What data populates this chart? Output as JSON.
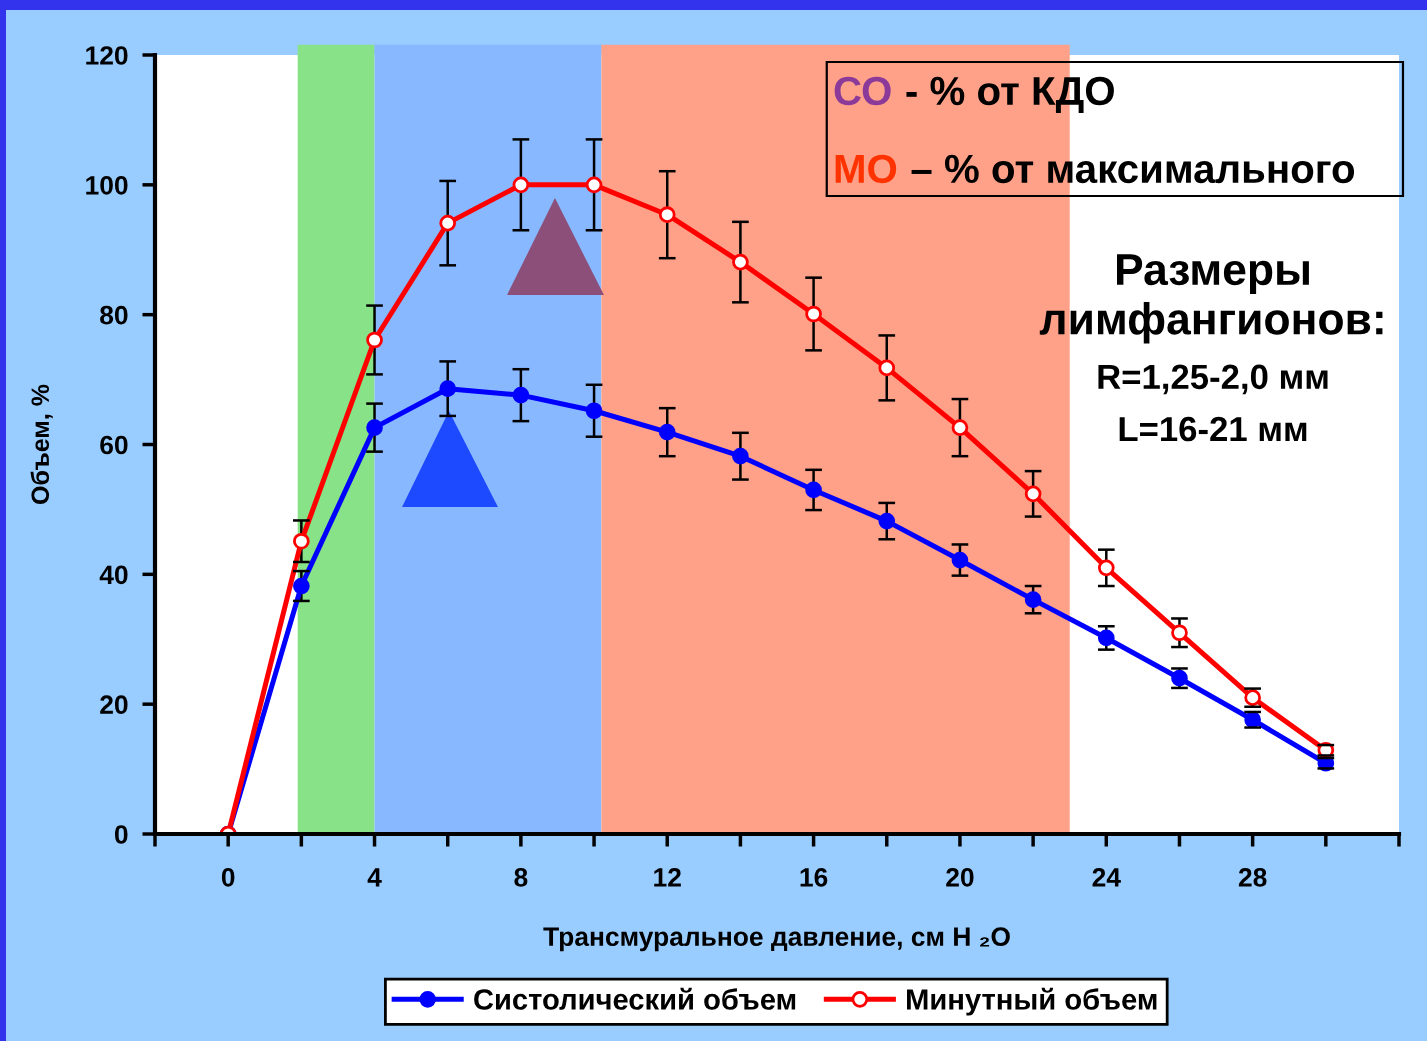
{
  "chart_data": {
    "type": "line",
    "x": [
      0,
      2,
      4,
      6,
      8,
      10,
      12,
      14,
      16,
      18,
      20,
      22,
      24,
      26,
      28,
      30
    ],
    "xlabel": "Трансмуральное давление, см H ₂O",
    "ylabel": "Объем, %",
    "xlim": [
      -2,
      32
    ],
    "xticks": [
      {
        "value": -2,
        "label": null
      },
      0,
      {
        "value": 2,
        "label": null
      },
      4,
      {
        "value": 6,
        "label": null
      },
      8,
      {
        "value": 10,
        "label": null
      },
      12,
      {
        "value": 14,
        "label": null
      },
      16,
      {
        "value": 18,
        "label": null
      },
      20,
      {
        "value": 22,
        "label": null
      },
      24,
      {
        "value": 26,
        "label": null
      },
      28,
      {
        "value": 30,
        "label": null
      },
      {
        "value": 32,
        "label": null
      }
    ],
    "ylim": [
      0,
      120
    ],
    "yticks": [
      0,
      20,
      40,
      60,
      80,
      100,
      120
    ],
    "series": [
      {
        "name": "Систолический объем",
        "color": "#0000ff",
        "values": [
          0,
          38.2,
          62.6,
          68.6,
          67.6,
          65.2,
          61.9,
          58.2,
          53.0,
          48.2,
          42.2,
          36.1,
          30.2,
          24.0,
          17.6,
          10.9
        ],
        "errors": [
          null,
          2.3,
          3.7,
          4.2,
          4.0,
          4.0,
          3.7,
          3.6,
          3.1,
          2.8,
          2.4,
          2.1,
          1.8,
          1.5,
          1.2,
          0.8
        ]
      },
      {
        "name": "Минутный объем",
        "color": "#ff0000",
        "values": [
          0,
          45.1,
          76.1,
          94.1,
          100.0,
          100.0,
          95.4,
          88.1,
          80.1,
          71.8,
          62.6,
          52.4,
          41.0,
          31.0,
          21.0,
          12.9
        ],
        "errors": [
          null,
          3.2,
          5.3,
          6.5,
          7.0,
          7.0,
          6.7,
          6.2,
          5.6,
          5.0,
          4.4,
          3.5,
          2.8,
          2.2,
          1.4,
          0.8
        ]
      }
    ],
    "bands": [
      {
        "axis": "x",
        "from": 1.9,
        "to": 4,
        "color": "#88e288"
      },
      {
        "axis": "x",
        "from": 4,
        "to": 10.2,
        "color": "#88b8ff"
      },
      {
        "axis": "x",
        "from": 10.2,
        "to": 23,
        "color": "#ffa088"
      }
    ],
    "annotations": [
      "СО",
      "- % от КДО",
      "МО",
      "– % от максимального",
      "Размеры\nлимфангионов:",
      "R=1,25-2,0 мм",
      "L=16-21 мм"
    ],
    "legend": "bottom",
    "marker": "circle",
    "line_style": "solid"
  }
}
